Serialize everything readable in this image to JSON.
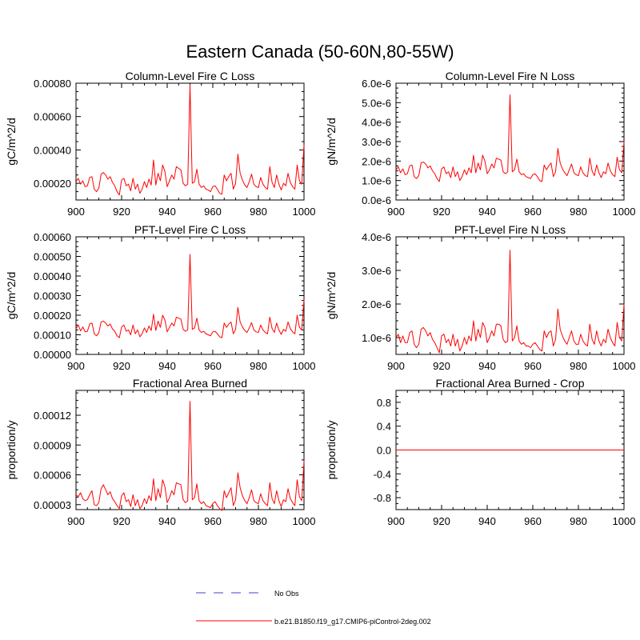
{
  "figure_title": "Eastern Canada (50-60N,80-55W)",
  "colors": {
    "series": "#ff0000",
    "obs": "#8080e0",
    "axis": "#000000"
  },
  "legend": [
    {
      "label": "No Obs",
      "style": "dashed",
      "color": "#8080e0"
    },
    {
      "label": "b.e21.B1850.f19_g17.CMIP6-piControl-2deg.002",
      "style": "solid",
      "color": "#ff0000"
    }
  ],
  "chart_data": [
    {
      "type": "line",
      "title": "Column-Level Fire C Loss",
      "ylabel": "gC/m^2/d",
      "xlabel": "",
      "xlim": [
        900,
        1000
      ],
      "ylim": [
        0.0001,
        0.0008
      ],
      "xticks": [
        900,
        920,
        940,
        960,
        980,
        1000
      ],
      "xtick_labels": [
        "900",
        "920",
        "940",
        "960",
        "980",
        "1000"
      ],
      "yticks": [
        0.0002,
        0.0004,
        0.0006,
        0.0008
      ],
      "ytick_labels": [
        "0.00020",
        "0.00040",
        "0.00060",
        "0.00080"
      ],
      "x_start": 900,
      "series": [
        {
          "name": "b.e21.B1850.f19_g17.CMIP6-piControl-2deg.002",
          "values": [
            0.00021,
            0.00023,
            0.000195,
            0.000215,
            0.00018,
            0.000185,
            0.000235,
            0.00024,
            0.000165,
            0.00015,
            0.00017,
            0.000255,
            0.000265,
            0.00025,
            0.000225,
            0.00024,
            0.000205,
            0.000185,
            0.00015,
            0.00013,
            0.00022,
            0.00023,
            0.000185,
            0.000195,
            0.000155,
            0.00023,
            0.000165,
            0.000195,
            0.00014,
            0.000165,
            0.00021,
            0.000175,
            0.000225,
            0.00019,
            0.00034,
            0.00019,
            0.00026,
            0.000215,
            0.00031,
            0.00027,
            0.00018,
            0.000215,
            0.00025,
            0.000225,
            0.0003,
            0.00029,
            0.00028,
            0.0002,
            0.000185,
            0.000195,
            0.00079,
            0.0002,
            0.00021,
            0.000285,
            0.000195,
            0.000175,
            0.000185,
            0.000165,
            0.00016,
            0.00015,
            0.00018,
            0.000185,
            0.000165,
            0.00014,
            0.000135,
            0.00025,
            0.000215,
            0.00024,
            0.00026,
            0.000165,
            0.0002,
            0.000375,
            0.00026,
            0.00022,
            0.00019,
            0.000175,
            0.00021,
            0.000255,
            0.000195,
            0.00018,
            0.000175,
            0.000235,
            0.000195,
            0.000175,
            0.000165,
            0.0003,
            0.000205,
            0.000175,
            0.00025,
            0.000195,
            0.00016,
            0.0002,
            0.000185,
            0.00026,
            0.000205,
            0.00018,
            0.000165,
            0.00031,
            0.000215,
            0.000195,
            0.00043
          ]
        }
      ]
    },
    {
      "type": "line",
      "title": "Column-Level Fire N Loss",
      "ylabel": "gN/m^2/d",
      "xlabel": "",
      "xlim": [
        900,
        1000
      ],
      "ylim": [
        0.0,
        6e-06
      ],
      "xticks": [
        900,
        920,
        940,
        960,
        980,
        1000
      ],
      "xtick_labels": [
        "900",
        "920",
        "940",
        "960",
        "980",
        "1000"
      ],
      "yticks": [
        0.0,
        1e-06,
        2e-06,
        3e-06,
        4e-06,
        5e-06,
        6e-06
      ],
      "ytick_labels": [
        "0.0e-6",
        "1.0e-6",
        "2.0e-6",
        "3.0e-6",
        "4.0e-6",
        "5.0e-6",
        "6.0e-6"
      ],
      "x_start": 900,
      "series": [
        {
          "name": "b.e21.B1850.f19_g17.CMIP6-piControl-2deg.002",
          "values": [
            1.55e-06,
            1.7e-06,
            1.4e-06,
            1.6e-06,
            1.3e-06,
            1.35e-06,
            1.75e-06,
            1.8e-06,
            1.2e-06,
            1.1e-06,
            1.25e-06,
            1.9e-06,
            1.95e-06,
            1.85e-06,
            1.65e-06,
            1.75e-06,
            1.5e-06,
            1.35e-06,
            1.1e-06,
            9.5e-07,
            1.6e-06,
            1.7e-06,
            1.35e-06,
            1.45e-06,
            1.15e-06,
            1.7e-06,
            1.2e-06,
            1.45e-06,
            1e-06,
            1.2e-06,
            1.55e-06,
            1.3e-06,
            1.65e-06,
            1.4e-06,
            2.3e-06,
            1.4e-06,
            1.9e-06,
            1.55e-06,
            2.3e-06,
            2e-06,
            1.35e-06,
            1.55e-06,
            1.85e-06,
            1.65e-06,
            2.15e-06,
            2.1e-06,
            2.05e-06,
            1.45e-06,
            1.35e-06,
            1.45e-06,
            5.4e-06,
            1.45e-06,
            1.55e-06,
            2.1e-06,
            1.45e-06,
            1.3e-06,
            1.35e-06,
            1.2e-06,
            1.15e-06,
            1.1e-06,
            1.3e-06,
            1.35e-06,
            1.2e-06,
            1e-06,
            9.5e-07,
            1.8e-06,
            1.55e-06,
            1.75e-06,
            1.9e-06,
            1.2e-06,
            1.45e-06,
            2.65e-06,
            1.9e-06,
            1.6e-06,
            1.4e-06,
            1.25e-06,
            1.55e-06,
            1.85e-06,
            1.4e-06,
            1.3e-06,
            1.25e-06,
            1.7e-06,
            1.4e-06,
            1.25e-06,
            1.2e-06,
            2.15e-06,
            1.5e-06,
            1.25e-06,
            1.8e-06,
            1.4e-06,
            1.15e-06,
            1.45e-06,
            1.35e-06,
            1.9e-06,
            1.5e-06,
            1.3e-06,
            1.2e-06,
            2.2e-06,
            1.55e-06,
            1.4e-06,
            3e-06
          ]
        }
      ]
    },
    {
      "type": "line",
      "title": "PFT-Level Fire C Loss",
      "ylabel": "gC/m^2/d",
      "xlabel": "",
      "xlim": [
        900,
        1000
      ],
      "ylim": [
        0.0,
        0.0006
      ],
      "xticks": [
        900,
        920,
        940,
        960,
        980,
        1000
      ],
      "xtick_labels": [
        "900",
        "920",
        "940",
        "960",
        "980",
        "1000"
      ],
      "yticks": [
        0.0,
        0.0001,
        0.0002,
        0.0003,
        0.0004,
        0.0005,
        0.0006
      ],
      "ytick_labels": [
        "0.00000",
        "0.00010",
        "0.00020",
        "0.00030",
        "0.00040",
        "0.00050",
        "0.00060"
      ],
      "x_start": 900,
      "series": [
        {
          "name": "b.e21.B1850.f19_g17.CMIP6-piControl-2deg.002",
          "values": [
            0.00013,
            0.00015,
            0.00012,
            0.00014,
            0.000115,
            0.000118,
            0.000155,
            0.00016,
            0.000105,
            9.5e-05,
            0.00011,
            0.000165,
            0.00017,
            0.00016,
            0.000145,
            0.000155,
            0.00013,
            0.000118,
            9.5e-05,
            8.5e-05,
            0.00014,
            0.00015,
            0.000118,
            0.000125,
            0.0001,
            0.00015,
            0.000105,
            0.000125,
            9e-05,
            0.000105,
            0.000135,
            0.000112,
            0.000145,
            0.000122,
            0.000205,
            0.000122,
            0.00017,
            0.000138,
            0.0002,
            0.000175,
            0.000115,
            0.000138,
            0.00016,
            0.000145,
            0.00019,
            0.000185,
            0.00018,
            0.000128,
            0.000118,
            0.000125,
            0.00051,
            0.000128,
            0.000135,
            0.000185,
            0.000125,
            0.000112,
            0.000118,
            0.000105,
            0.0001,
            9.5e-05,
            0.000115,
            0.000118,
            0.000105,
            9e-05,
            8.5e-05,
            0.00016,
            0.000138,
            0.000155,
            0.000165,
            0.000105,
            0.000128,
            0.00024,
            0.000165,
            0.00014,
            0.000122,
            0.000112,
            0.000135,
            0.000162,
            0.000125,
            0.000115,
            0.000112,
            0.00015,
            0.000125,
            0.000112,
            0.000105,
            0.00019,
            0.000132,
            0.000112,
            0.00016,
            0.000125,
            0.000102,
            0.000128,
            0.000118,
            0.000165,
            0.000132,
            0.000115,
            0.000105,
            0.0002,
            0.000138,
            0.000125,
            0.00028
          ]
        }
      ]
    },
    {
      "type": "line",
      "title": "PFT-Level Fire N Loss",
      "ylabel": "gN/m^2/d",
      "xlabel": "",
      "xlim": [
        900,
        1000
      ],
      "ylim": [
        5e-07,
        4e-06
      ],
      "xticks": [
        900,
        920,
        940,
        960,
        980,
        1000
      ],
      "xtick_labels": [
        "900",
        "920",
        "940",
        "960",
        "980",
        "1000"
      ],
      "yticks": [
        1e-06,
        2e-06,
        3e-06,
        4e-06
      ],
      "ytick_labels": [
        "1.0e-6",
        "2.0e-6",
        "3.0e-6",
        "4.0e-6"
      ],
      "x_start": 900,
      "series": [
        {
          "name": "b.e21.B1850.f19_g17.CMIP6-piControl-2deg.002",
          "values": [
            1e-06,
            1.1e-06,
            8.5e-07,
            1.05e-06,
            8.5e-07,
            8.5e-07,
            1.15e-06,
            1.2e-06,
            8e-07,
            7e-07,
            8e-07,
            1.25e-06,
            1.3e-06,
            1.2e-06,
            1.05e-06,
            1.15e-06,
            9.5e-07,
            8.5e-07,
            7e-07,
            5.5e-07,
            1.05e-06,
            1.1e-06,
            8.5e-07,
            9.5e-07,
            7.5e-07,
            1.1e-06,
            7.5e-07,
            9.5e-07,
            6e-07,
            7.5e-07,
            1e-06,
            8e-07,
            1.05e-06,
            9e-07,
            1.5e-06,
            9e-07,
            1.25e-06,
            1e-06,
            1.45e-06,
            1.3e-06,
            8.5e-07,
            1e-06,
            1.2e-06,
            1.05e-06,
            1.4e-06,
            1.4e-06,
            1.35e-06,
            9.5e-07,
            8.5e-07,
            9e-07,
            3.6e-06,
            9e-07,
            1e-06,
            1.35e-06,
            9e-07,
            8e-07,
            8.5e-07,
            7.5e-07,
            7.5e-07,
            7e-07,
            8e-07,
            8.5e-07,
            7.5e-07,
            6.5e-07,
            6e-07,
            1.2e-06,
            1e-06,
            1.15e-06,
            1.2e-06,
            7.5e-07,
            9.5e-07,
            1.85e-06,
            1.25e-06,
            1.05e-06,
            9e-07,
            8e-07,
            1e-06,
            1.2e-06,
            9e-07,
            8e-07,
            8e-07,
            1.1e-06,
            9e-07,
            8e-07,
            7.5e-07,
            1.4e-06,
            9.5e-07,
            8e-07,
            1.2e-06,
            9e-07,
            7.5e-07,
            9.5e-07,
            8.5e-07,
            1.25e-06,
            1e-06,
            8.5e-07,
            7.5e-07,
            1.45e-06,
            1e-06,
            9e-07,
            2e-06
          ]
        }
      ]
    },
    {
      "type": "line",
      "title": "Fractional Area Burned",
      "ylabel": "proportion/y",
      "xlabel": "",
      "xlim": [
        900,
        1000
      ],
      "ylim": [
        2.5e-05,
        0.000145
      ],
      "xticks": [
        900,
        920,
        940,
        960,
        980,
        1000
      ],
      "xtick_labels": [
        "900",
        "920",
        "940",
        "960",
        "980",
        "1000"
      ],
      "yticks": [
        3e-05,
        6e-05,
        9e-05,
        0.00012
      ],
      "ytick_labels": [
        "0.00003",
        "0.00006",
        "0.00009",
        "0.00012"
      ],
      "x_start": 900,
      "series": [
        {
          "name": "b.e21.B1850.f19_g17.CMIP6-piControl-2deg.002",
          "values": [
            4e-05,
            3.8e-05,
            4.2e-05,
            3.6e-05,
            3.4e-05,
            3.5e-05,
            4e-05,
            4.4e-05,
            3e-05,
            2.9e-05,
            3.2e-05,
            4.6e-05,
            5e-05,
            4.5e-05,
            4e-05,
            4.3e-05,
            3.6e-05,
            3.3e-05,
            2.9e-05,
            2.6e-05,
            3.9e-05,
            4.2e-05,
            3.3e-05,
            3.5e-05,
            2.8e-05,
            4e-05,
            2.9e-05,
            3.5e-05,
            2.6e-05,
            2.9e-05,
            3.6e-05,
            3.1e-05,
            3.9e-05,
            3.4e-05,
            5.6e-05,
            3.4e-05,
            4.6e-05,
            3.7e-05,
            5.5e-05,
            4.8e-05,
            3.2e-05,
            3.7e-05,
            4.4e-05,
            4e-05,
            5.2e-05,
            5.1e-05,
            5e-05,
            3.5e-05,
            3.2e-05,
            3.4e-05,
            0.000134,
            3.5e-05,
            3.7e-05,
            5.1e-05,
            3.4e-05,
            3.1e-05,
            3.3e-05,
            2.9e-05,
            2.8e-05,
            2.7e-05,
            3.1e-05,
            3.3e-05,
            2.9e-05,
            2.6e-05,
            2.4e-05,
            4.4e-05,
            3.7e-05,
            4.2e-05,
            4.7e-05,
            2.9e-05,
            3.5e-05,
            6.2e-05,
            4.7e-05,
            3.9e-05,
            3.4e-05,
            3.1e-05,
            3.7e-05,
            4.5e-05,
            3.4e-05,
            3.2e-05,
            3.1e-05,
            4.1e-05,
            3.4e-05,
            3.1e-05,
            2.9e-05,
            5.2e-05,
            3.6e-05,
            3.1e-05,
            4.4e-05,
            3.4e-05,
            2.8e-05,
            3.5e-05,
            3.3e-05,
            4.6e-05,
            3.6e-05,
            3.2e-05,
            2.9e-05,
            5.5e-05,
            3.8e-05,
            3.4e-05,
            7.4e-05
          ]
        }
      ]
    },
    {
      "type": "line",
      "title": "Fractional Area Burned - Crop",
      "ylabel": "proportion/y",
      "xlabel": "",
      "xlim": [
        900,
        1000
      ],
      "ylim": [
        -1.0,
        1.0
      ],
      "xticks": [
        900,
        920,
        940,
        960,
        980,
        1000
      ],
      "xtick_labels": [
        "900",
        "920",
        "940",
        "960",
        "980",
        "1000"
      ],
      "yticks": [
        -0.8,
        -0.4,
        0.0,
        0.4,
        0.8
      ],
      "ytick_labels": [
        "-0.8",
        "-0.4",
        "0.0",
        "0.4",
        "0.8"
      ],
      "x_start": 900,
      "series": [
        {
          "name": "b.e21.B1850.f19_g17.CMIP6-piControl-2deg.002",
          "values": [
            0,
            0
          ]
        }
      ],
      "constant_x": [
        900,
        1000
      ]
    }
  ]
}
